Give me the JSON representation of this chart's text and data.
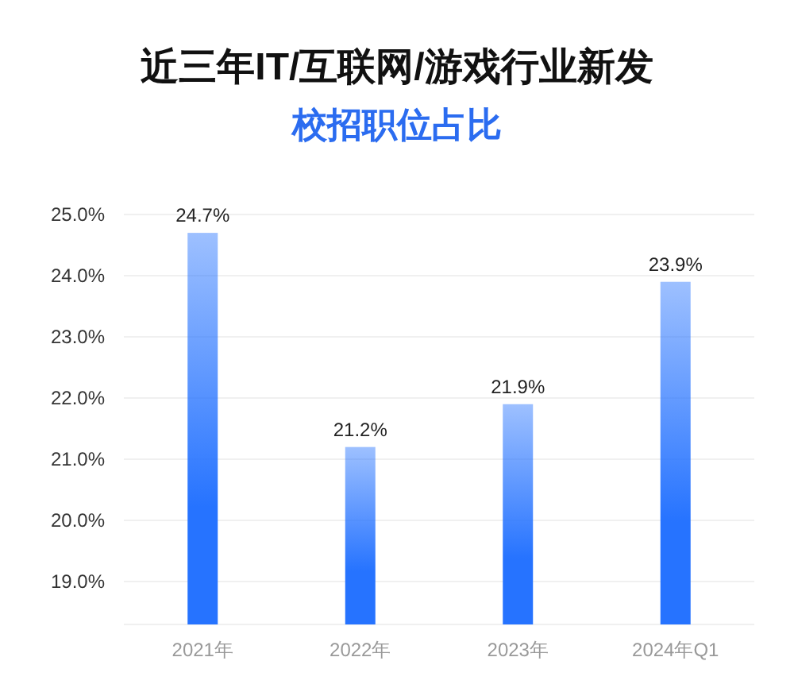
{
  "chart_data": {
    "type": "bar",
    "title": "近三年IT/互联网/游戏行业新发",
    "subtitle": "校招职位占比",
    "categories": [
      "2021年",
      "2022年",
      "2023年",
      "2024年Q1"
    ],
    "values": [
      24.7,
      21.2,
      21.9,
      23.9
    ],
    "color": "#2673ff",
    "ylim": [
      18.3,
      25
    ],
    "yticks": [
      {
        "value": 19,
        "label": "19.0%"
      },
      {
        "value": 20,
        "label": "20.0%"
      },
      {
        "value": 21,
        "label": "21.0%"
      },
      {
        "value": 22,
        "label": "22.0%"
      },
      {
        "value": 23,
        "label": "23.0%"
      },
      {
        "value": 24,
        "label": "24.0%"
      },
      {
        "value": 25,
        "label": "25.0%"
      }
    ],
    "value_labels": [
      "24.7%",
      "21.2%",
      "21.9%",
      "23.9%"
    ],
    "grid": "y"
  }
}
